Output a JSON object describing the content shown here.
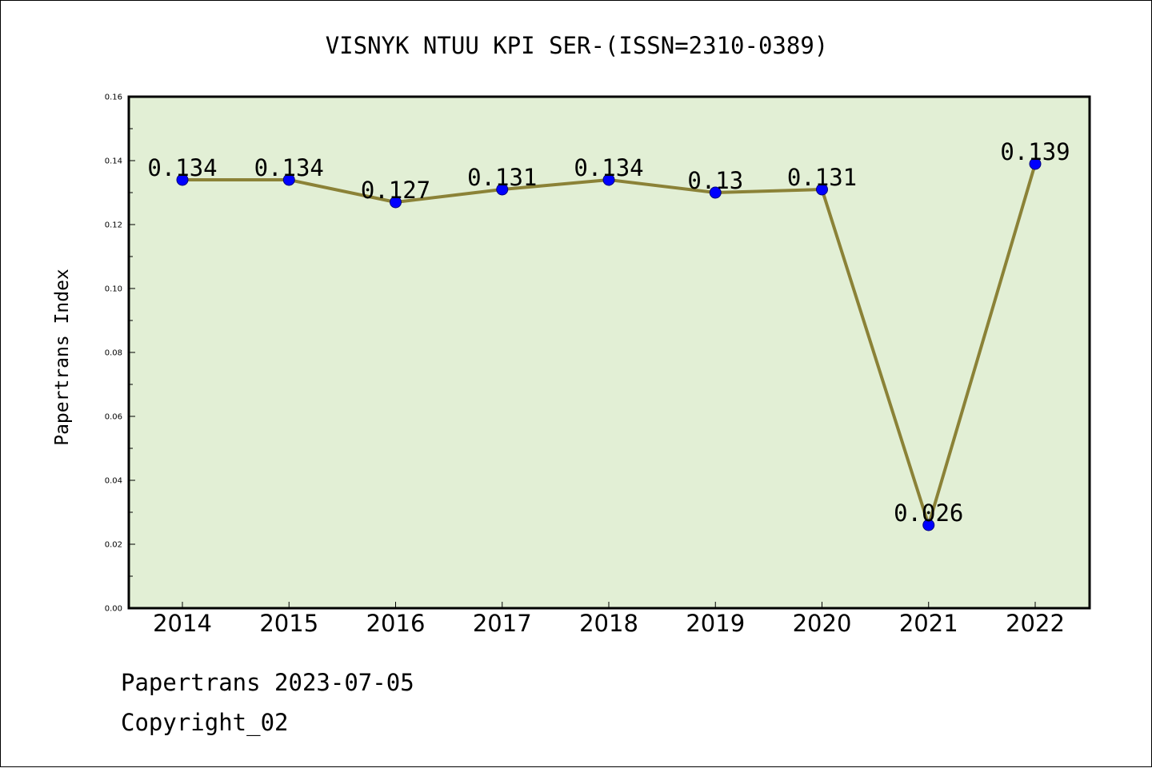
{
  "chart_data": {
    "type": "line",
    "title": "VISNYK NTUU KPI SER-(ISSN=2310-0389)",
    "xlabel": "",
    "ylabel": "Papertrans Index",
    "categories": [
      "2014",
      "2015",
      "2016",
      "2017",
      "2018",
      "2019",
      "2020",
      "2021",
      "2022"
    ],
    "values": [
      0.134,
      0.134,
      0.127,
      0.131,
      0.134,
      0.13,
      0.131,
      0.026,
      0.139
    ],
    "data_labels": [
      "0.134",
      "0.134",
      "0.127",
      "0.131",
      "0.134",
      "0.13",
      "0.131",
      "0.026",
      "0.139"
    ],
    "ylim": [
      0,
      0.16
    ],
    "yticks": [
      0.0,
      0.02,
      0.04,
      0.06,
      0.08,
      0.1,
      0.12,
      0.14,
      0.16
    ],
    "ytick_labels": [
      "0.00",
      "0.02",
      "0.04",
      "0.06",
      "0.08",
      "0.10",
      "0.12",
      "0.14",
      "0.16"
    ],
    "grid": false,
    "legend": "none",
    "colors": {
      "plot_background": "#e2efd5",
      "line": "#8b8237",
      "marker": "#0000ff",
      "marker_edge": "#00007a"
    }
  },
  "footer": {
    "date_line": "Papertrans 2023-07-05",
    "copyright": "Copyright_02"
  }
}
